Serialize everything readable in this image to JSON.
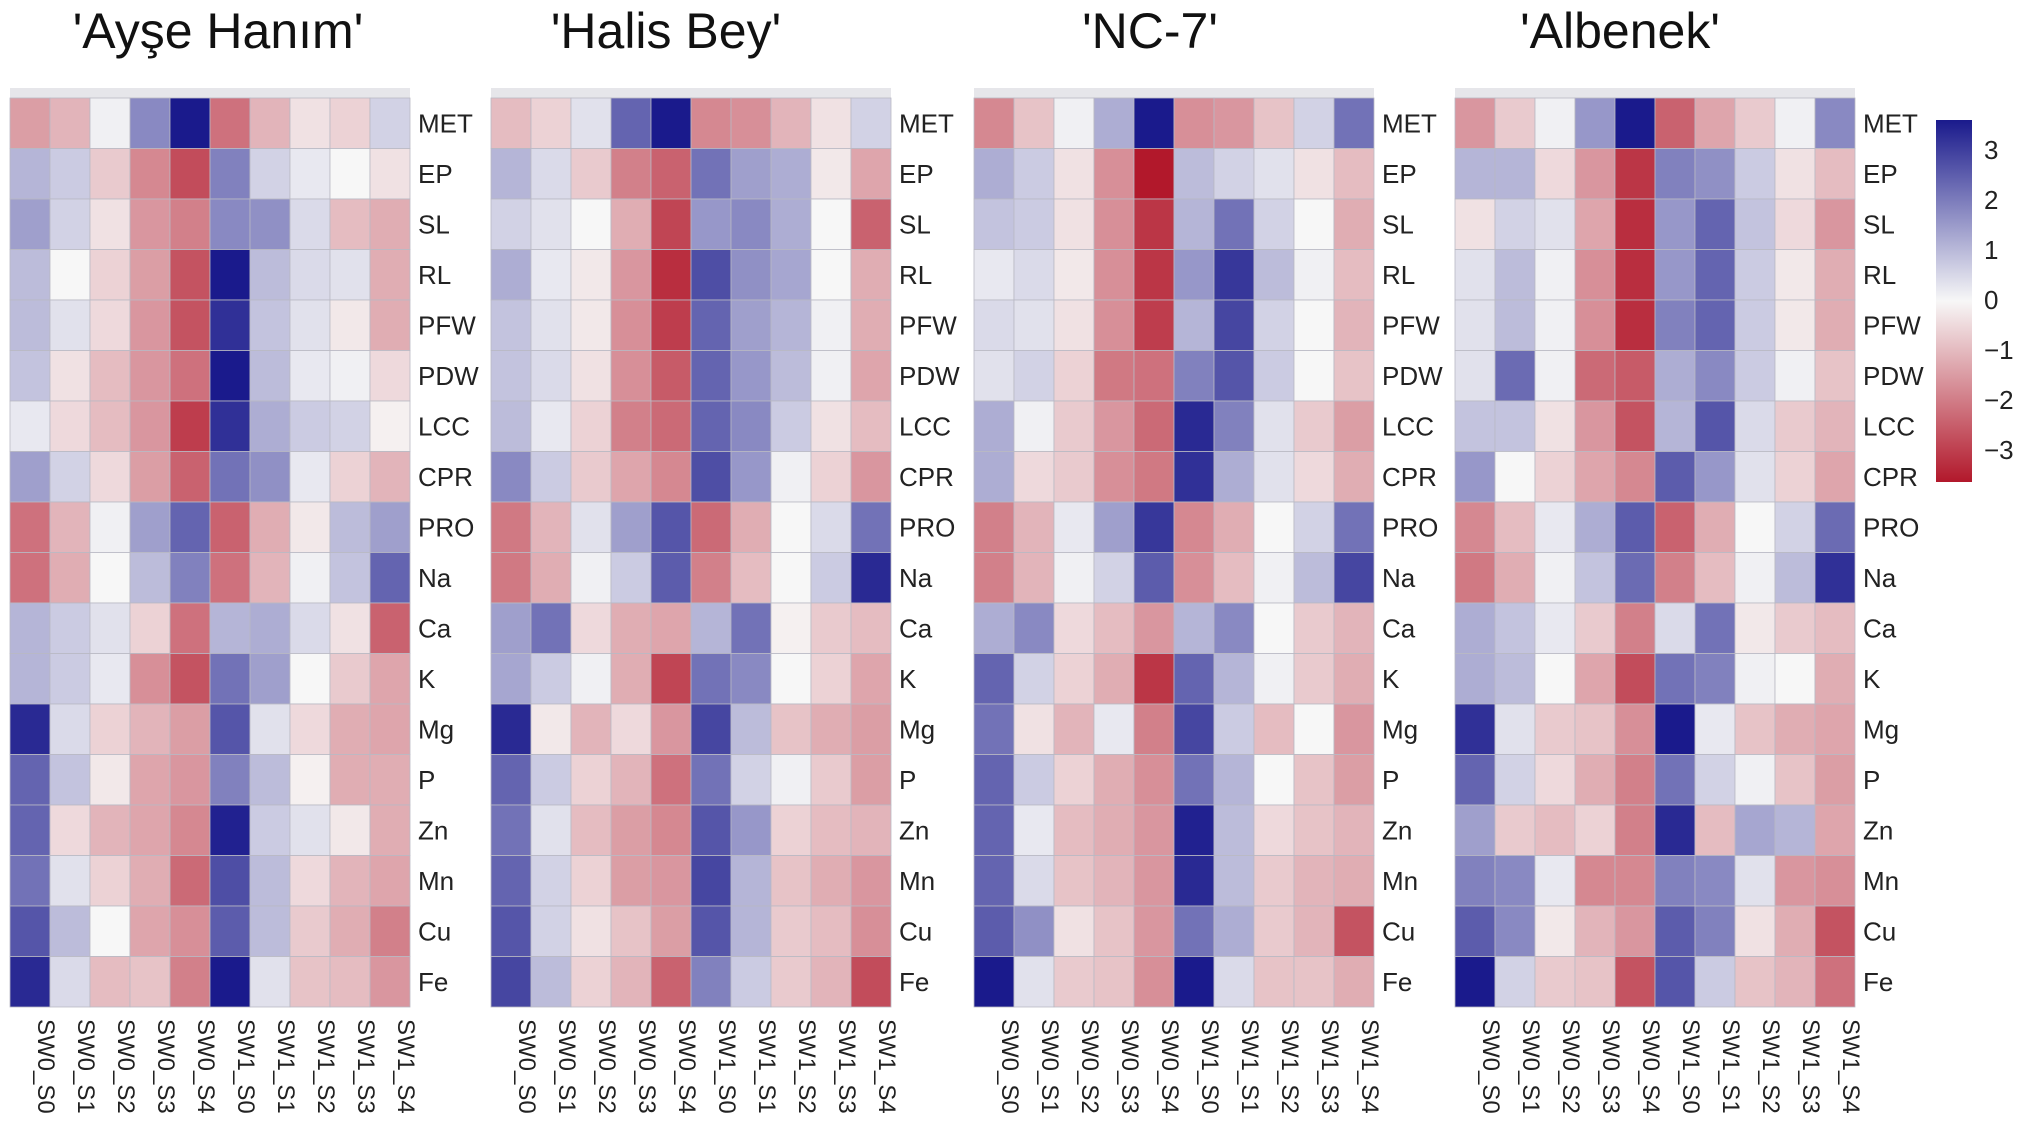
{
  "chart_data": {
    "type": "heatmap",
    "rows": [
      "MET",
      "EP",
      "SL",
      "RL",
      "PFW",
      "PDW",
      "LCC",
      "CPR",
      "PRO",
      "Na",
      "Ca",
      "K",
      "Mg",
      "P",
      "Zn",
      "Mn",
      "Cu",
      "Fe"
    ],
    "columns": [
      "SW0_S0",
      "SW0_S1",
      "SW0_S2",
      "SW0_S3",
      "SW0_S4",
      "SW1_S0",
      "SW1_S1",
      "SW1_S2",
      "SW1_S3",
      "SW1_S4"
    ],
    "colorbar": {
      "ticks": [
        "3",
        "2",
        "1",
        "0",
        "−1",
        "−2",
        "−3"
      ],
      "min": -3,
      "max": 3
    },
    "colors": {
      "high": "#1a1a8c",
      "mid": "#f7f7f7",
      "low": "#b2182b"
    },
    "panels": [
      {
        "title": "'Ayşe Hanım'",
        "values": [
          [
            -1.2,
            -0.9,
            0.1,
            1.5,
            3.2,
            -1.8,
            -0.9,
            -0.3,
            -0.5,
            0.5
          ],
          [
            0.9,
            0.6,
            -0.6,
            -1.5,
            -2.3,
            1.6,
            0.5,
            0.2,
            0.0,
            -0.3
          ],
          [
            1.2,
            0.5,
            -0.3,
            -1.3,
            -1.6,
            1.5,
            1.4,
            0.4,
            -0.8,
            -1.0
          ],
          [
            0.8,
            0.0,
            -0.5,
            -1.2,
            -2.2,
            3.0,
            0.8,
            0.4,
            0.3,
            -1.0
          ],
          [
            0.8,
            0.3,
            -0.4,
            -1.3,
            -2.2,
            2.7,
            0.7,
            0.3,
            -0.2,
            -1.0
          ],
          [
            0.7,
            -0.3,
            -0.8,
            -1.3,
            -1.8,
            3.2,
            0.8,
            0.2,
            0.1,
            -0.4
          ],
          [
            0.2,
            -0.4,
            -0.8,
            -1.3,
            -2.5,
            2.7,
            1.0,
            0.6,
            0.5,
            -0.1
          ],
          [
            1.2,
            0.5,
            -0.4,
            -1.2,
            -2.0,
            1.8,
            1.4,
            0.2,
            -0.5,
            -0.9
          ],
          [
            -1.8,
            -0.9,
            0.1,
            1.2,
            2.0,
            -2.0,
            -1.0,
            -0.2,
            0.8,
            1.2
          ],
          [
            -1.8,
            -1.0,
            0.0,
            0.8,
            1.6,
            -1.8,
            -0.9,
            0.1,
            0.7,
            2.0
          ],
          [
            0.9,
            0.6,
            0.3,
            -0.5,
            -1.8,
            0.9,
            1.0,
            0.4,
            -0.3,
            -2.0
          ],
          [
            0.9,
            0.6,
            0.2,
            -1.4,
            -2.2,
            1.8,
            1.2,
            0.0,
            -0.6,
            -1.1
          ],
          [
            2.8,
            0.4,
            -0.5,
            -0.9,
            -1.2,
            2.2,
            0.3,
            -0.4,
            -1.0,
            -1.1
          ],
          [
            2.0,
            0.7,
            -0.2,
            -1.1,
            -1.3,
            1.6,
            0.8,
            -0.1,
            -1.0,
            -1.0
          ],
          [
            2.0,
            -0.4,
            -0.9,
            -1.1,
            -1.5,
            2.9,
            0.6,
            0.3,
            -0.2,
            -1.0
          ],
          [
            1.8,
            0.3,
            -0.5,
            -1.0,
            -1.9,
            2.3,
            0.8,
            -0.4,
            -0.9,
            -1.1
          ],
          [
            2.2,
            0.8,
            0.0,
            -1.1,
            -1.4,
            2.1,
            0.8,
            -0.6,
            -1.0,
            -1.6
          ],
          [
            2.8,
            0.4,
            -0.8,
            -0.7,
            -1.6,
            3.1,
            0.3,
            -0.7,
            -0.8,
            -1.3
          ]
        ]
      },
      {
        "title": "'Halis Bey'",
        "values": [
          [
            -0.8,
            -0.5,
            0.3,
            2.0,
            3.2,
            -1.5,
            -1.4,
            -0.9,
            -0.3,
            0.5
          ],
          [
            0.9,
            0.4,
            -0.6,
            -1.6,
            -2.0,
            1.8,
            1.2,
            1.0,
            -0.2,
            -1.1
          ],
          [
            0.5,
            0.3,
            0.0,
            -1.0,
            -2.4,
            1.3,
            1.5,
            1.0,
            0.0,
            -2.0
          ],
          [
            1.0,
            0.2,
            -0.2,
            -1.3,
            -2.7,
            2.3,
            1.4,
            1.1,
            0.0,
            -1.0
          ],
          [
            0.7,
            0.3,
            -0.2,
            -1.4,
            -2.5,
            2.0,
            1.2,
            0.9,
            0.1,
            -1.0
          ],
          [
            0.7,
            0.4,
            -0.3,
            -1.4,
            -2.1,
            2.0,
            1.3,
            0.8,
            0.1,
            -1.1
          ],
          [
            0.8,
            0.2,
            -0.5,
            -1.6,
            -1.9,
            2.0,
            1.5,
            0.6,
            -0.3,
            -0.8
          ],
          [
            1.5,
            0.6,
            -0.6,
            -1.1,
            -1.5,
            2.3,
            1.3,
            0.1,
            -0.5,
            -1.3
          ],
          [
            -1.7,
            -0.9,
            0.3,
            1.2,
            2.2,
            -1.9,
            -1.0,
            0.0,
            0.4,
            1.8
          ],
          [
            -1.7,
            -1.0,
            0.1,
            0.6,
            2.1,
            -1.6,
            -0.8,
            0.0,
            0.6,
            2.8
          ],
          [
            1.2,
            1.8,
            -0.4,
            -1.0,
            -1.1,
            0.9,
            1.8,
            -0.1,
            -0.6,
            -0.8
          ],
          [
            1.1,
            0.6,
            0.1,
            -1.0,
            -2.4,
            1.8,
            1.5,
            0.0,
            -0.5,
            -1.1
          ],
          [
            2.8,
            -0.2,
            -0.9,
            -0.4,
            -1.3,
            2.4,
            0.8,
            -0.7,
            -1.0,
            -1.2
          ],
          [
            2.0,
            0.6,
            -0.5,
            -0.9,
            -1.8,
            1.8,
            0.5,
            0.1,
            -0.6,
            -1.2
          ],
          [
            1.8,
            0.3,
            -0.8,
            -1.2,
            -1.5,
            2.2,
            1.3,
            -0.5,
            -0.8,
            -0.9
          ],
          [
            2.0,
            0.5,
            -0.5,
            -1.2,
            -1.3,
            2.4,
            0.9,
            -0.7,
            -1.0,
            -1.3
          ],
          [
            2.2,
            0.5,
            -0.3,
            -0.7,
            -1.2,
            2.2,
            0.9,
            -0.6,
            -0.8,
            -1.4
          ],
          [
            2.4,
            0.8,
            -0.5,
            -0.9,
            -2.0,
            1.6,
            0.6,
            -0.6,
            -0.9,
            -2.3
          ]
        ]
      },
      {
        "title": "'NC-7'",
        "values": [
          [
            -1.5,
            -0.7,
            0.1,
            1.0,
            3.0,
            -1.4,
            -1.3,
            -0.7,
            0.5,
            1.8
          ],
          [
            1.0,
            0.6,
            -0.3,
            -1.4,
            -3.2,
            0.8,
            0.5,
            0.3,
            -0.3,
            -0.8
          ],
          [
            0.7,
            0.6,
            -0.3,
            -1.4,
            -2.6,
            0.9,
            1.8,
            0.5,
            0.0,
            -1.0
          ],
          [
            0.2,
            0.4,
            -0.2,
            -1.4,
            -2.6,
            1.3,
            2.6,
            0.8,
            0.1,
            -0.8
          ],
          [
            0.4,
            0.3,
            -0.3,
            -1.4,
            -2.5,
            0.9,
            2.4,
            0.5,
            0.0,
            -0.9
          ],
          [
            0.3,
            0.5,
            -0.5,
            -1.7,
            -1.8,
            1.6,
            2.2,
            0.6,
            0.0,
            -0.7
          ],
          [
            1.0,
            0.1,
            -0.6,
            -1.3,
            -1.9,
            2.8,
            1.6,
            0.3,
            -0.6,
            -1.2
          ],
          [
            1.0,
            -0.4,
            -0.6,
            -1.4,
            -1.7,
            2.7,
            1.0,
            0.3,
            -0.4,
            -1.0
          ],
          [
            -1.6,
            -0.9,
            0.2,
            1.2,
            2.6,
            -1.5,
            -1.0,
            0.0,
            0.5,
            1.8
          ],
          [
            -1.6,
            -0.9,
            0.1,
            0.5,
            2.1,
            -1.4,
            -0.8,
            0.1,
            0.8,
            2.4
          ],
          [
            1.0,
            1.5,
            -0.4,
            -0.8,
            -1.3,
            0.9,
            1.5,
            0.0,
            -0.6,
            -0.9
          ],
          [
            2.0,
            0.5,
            -0.5,
            -1.0,
            -2.6,
            2.0,
            0.9,
            0.1,
            -0.6,
            -1.0
          ],
          [
            1.8,
            -0.3,
            -0.9,
            0.2,
            -1.6,
            2.4,
            0.6,
            -0.8,
            0.0,
            -1.3
          ],
          [
            2.0,
            0.6,
            -0.5,
            -1.0,
            -1.4,
            1.8,
            0.9,
            0.0,
            -0.7,
            -1.2
          ],
          [
            2.0,
            0.2,
            -0.8,
            -1.0,
            -1.3,
            2.9,
            0.8,
            -0.4,
            -0.7,
            -0.9
          ],
          [
            2.0,
            0.4,
            -0.7,
            -0.9,
            -1.3,
            2.8,
            0.8,
            -0.6,
            -0.9,
            -1.0
          ],
          [
            2.1,
            1.4,
            -0.3,
            -0.7,
            -1.3,
            1.8,
            1.0,
            -0.6,
            -0.9,
            -2.2
          ],
          [
            3.0,
            0.3,
            -0.6,
            -0.7,
            -1.4,
            3.0,
            0.4,
            -0.7,
            -0.7,
            -1.0
          ]
        ]
      },
      {
        "title": "'Albenek'",
        "values": [
          [
            -1.3,
            -0.6,
            0.1,
            1.3,
            3.2,
            -2.0,
            -1.1,
            -0.6,
            0.1,
            1.5
          ],
          [
            0.9,
            0.9,
            -0.4,
            -1.3,
            -2.6,
            1.6,
            1.4,
            0.6,
            -0.3,
            -0.8
          ],
          [
            -0.3,
            0.5,
            0.3,
            -1.1,
            -2.7,
            1.3,
            2.0,
            0.7,
            -0.4,
            -1.3
          ],
          [
            0.3,
            0.8,
            0.1,
            -1.4,
            -2.7,
            1.3,
            2.0,
            0.6,
            -0.2,
            -1.0
          ],
          [
            0.3,
            0.8,
            0.1,
            -1.4,
            -2.7,
            1.6,
            2.0,
            0.6,
            -0.2,
            -1.0
          ],
          [
            0.3,
            1.9,
            0.1,
            -1.9,
            -2.1,
            1.0,
            1.5,
            0.6,
            0.1,
            -0.7
          ],
          [
            0.7,
            0.7,
            -0.3,
            -1.3,
            -2.2,
            0.9,
            2.2,
            0.4,
            -0.6,
            -0.9
          ],
          [
            1.3,
            0.0,
            -0.5,
            -1.1,
            -1.5,
            2.1,
            1.3,
            0.3,
            -0.5,
            -1.1
          ],
          [
            -1.5,
            -0.8,
            0.2,
            1.0,
            2.1,
            -2.0,
            -1.0,
            0.0,
            0.5,
            1.9
          ],
          [
            -1.7,
            -1.0,
            0.1,
            0.7,
            1.9,
            -1.6,
            -0.8,
            0.1,
            0.8,
            2.7
          ],
          [
            1.0,
            0.7,
            0.2,
            -0.6,
            -1.6,
            0.4,
            1.8,
            -0.2,
            -0.6,
            -0.8
          ],
          [
            1.0,
            0.8,
            0.0,
            -1.1,
            -2.3,
            1.8,
            1.6,
            0.1,
            0.0,
            -1.0
          ],
          [
            2.7,
            0.3,
            -0.6,
            -0.7,
            -1.4,
            3.0,
            0.2,
            -0.7,
            -1.0,
            -1.1
          ],
          [
            2.0,
            0.5,
            -0.4,
            -1.0,
            -1.6,
            1.8,
            0.5,
            0.1,
            -0.7,
            -1.2
          ],
          [
            1.2,
            -0.6,
            -0.8,
            -0.5,
            -1.6,
            2.8,
            -0.8,
            1.1,
            0.9,
            -1.1
          ],
          [
            1.6,
            1.5,
            0.2,
            -1.5,
            -1.5,
            1.6,
            1.5,
            0.3,
            -1.3,
            -1.4
          ],
          [
            2.1,
            1.5,
            -0.2,
            -0.9,
            -1.3,
            2.1,
            1.6,
            -0.3,
            -1.0,
            -2.2
          ],
          [
            3.0,
            0.5,
            -0.6,
            -0.7,
            -2.2,
            2.2,
            0.6,
            -0.7,
            -0.9,
            -1.8
          ]
        ]
      }
    ]
  }
}
